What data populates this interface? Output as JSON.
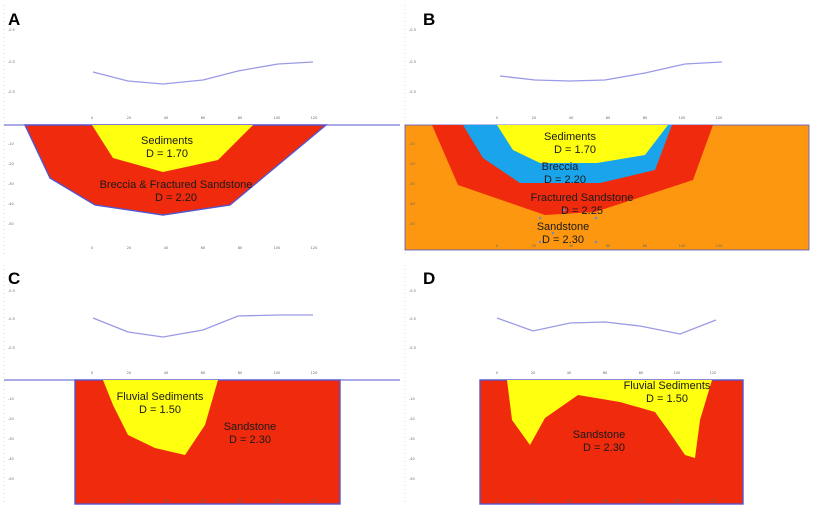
{
  "colors": {
    "red": "#f02a0c",
    "yellow": "#ffff10",
    "blue": "#1aa4ec",
    "orange": "#fd9710",
    "outline": "#5555cc",
    "profile": "#9a9ae6"
  },
  "panels": {
    "a": {
      "letter": "A",
      "units": [
        {
          "name": "Sediments",
          "density": "D =  1.70"
        },
        {
          "name": "Breccia & Fractured Sandstone",
          "density": "D =  2.20"
        }
      ]
    },
    "b": {
      "letter": "B",
      "units": [
        {
          "name": "Sediments",
          "density": "D =  1.70"
        },
        {
          "name": "Breccia",
          "density": "D =  2.20"
        },
        {
          "name": "Fractured Sandstone",
          "density": "D =  2.25"
        },
        {
          "name": "Sandstone",
          "density": "D =  2.30"
        }
      ]
    },
    "c": {
      "letter": "C",
      "units": [
        {
          "name": "Fluvial Sediments",
          "density": "D =  1.50"
        },
        {
          "name": "Sandstone",
          "density": "D =  2.30"
        }
      ]
    },
    "d": {
      "letter": "D",
      "units": [
        {
          "name": "Fluvial Sediments",
          "density": "D =  1.50"
        },
        {
          "name": "Sandstone",
          "density": "D =  2.30"
        }
      ]
    }
  },
  "axes": {
    "x_ticks": [
      "0",
      "20",
      "40",
      "60",
      "80",
      "100",
      "120"
    ],
    "gravity_ticks": [
      "-0.5",
      "-0.5",
      "-0.5"
    ],
    "depth_ticks": [
      "-10",
      "-20",
      "-30",
      "-40",
      "-50"
    ]
  }
}
